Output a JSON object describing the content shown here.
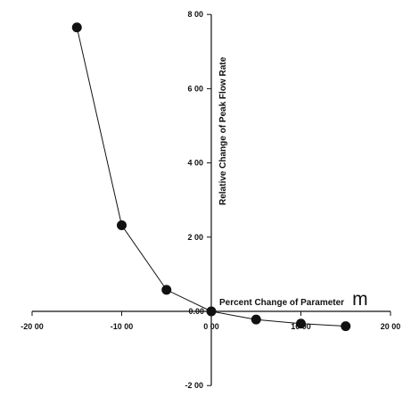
{
  "chart_data": {
    "type": "line",
    "xlabel": "Percent Change of Parameter",
    "xlabel_parameter": "m",
    "ylabel": "Relative Change of Peak Flow Rate",
    "xlim": [
      -20,
      20
    ],
    "ylim": [
      -2,
      8
    ],
    "x_ticks": [
      -20,
      -10,
      0,
      10,
      20
    ],
    "x_tick_labels": [
      "-20 00",
      "-10 00",
      "0 00",
      "10 00",
      "20 00"
    ],
    "y_ticks": [
      -2,
      2,
      4,
      6,
      8
    ],
    "y_tick_labels": [
      "-2 00",
      "2 00",
      "4 00",
      "6 00",
      "8 00"
    ],
    "y_zero_label": "0.00",
    "grid": false,
    "series": [
      {
        "x": [
          -15,
          -10,
          -5,
          0,
          5,
          10,
          15
        ],
        "values": [
          7.65,
          2.32,
          0.58,
          0.0,
          -0.22,
          -0.33,
          -0.4
        ]
      }
    ]
  }
}
